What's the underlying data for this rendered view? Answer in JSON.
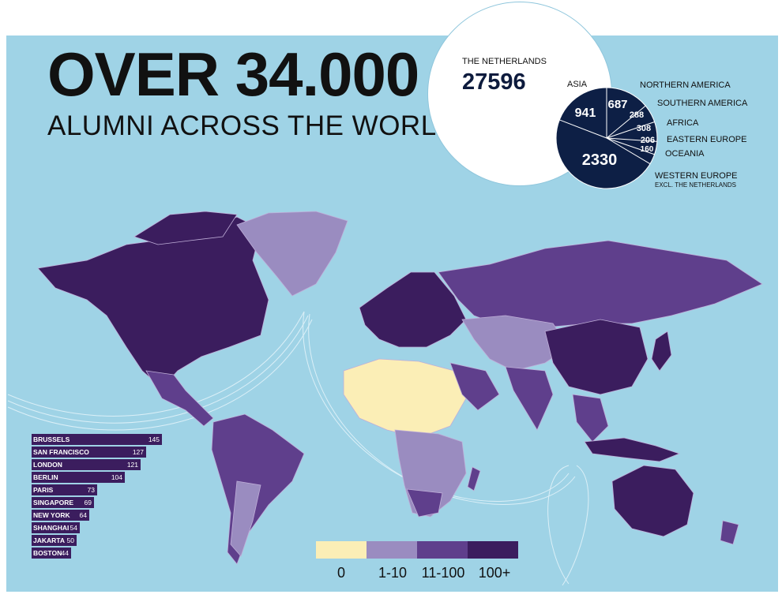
{
  "header": {
    "headline": "OVER 34.000",
    "subline": "ALUMNI ACROSS THE WORLD"
  },
  "netherlands": {
    "label": "THE NETHERLANDS",
    "value": "27596"
  },
  "regions": {
    "asia": {
      "label": "ASIA",
      "value": "941"
    },
    "northern_america": {
      "label": "NORTHERN AMERICA",
      "value": "687"
    },
    "southern_america": {
      "label": "SOUTHERN AMERICA",
      "value": "288"
    },
    "africa": {
      "label": "AFRICA",
      "value": "308"
    },
    "eastern_europe": {
      "label": "EASTERN EUROPE",
      "value": "206"
    },
    "oceania": {
      "label": "OCEANIA",
      "value": "160"
    },
    "western_europe": {
      "label": "WESTERN EUROPE",
      "sublabel": "EXCL. THE NETHERLANDS",
      "value": "2330"
    }
  },
  "cities": [
    {
      "name": "BRUSSELS",
      "value": 145
    },
    {
      "name": "SAN FRANCISCO",
      "value": 127
    },
    {
      "name": "LONDON",
      "value": 121
    },
    {
      "name": "BERLIN",
      "value": 104
    },
    {
      "name": "PARIS",
      "value": 73
    },
    {
      "name": "SINGAPORE",
      "value": 69
    },
    {
      "name": "NEW YORK",
      "value": 64
    },
    {
      "name": "SHANGHAI",
      "value": 54
    },
    {
      "name": "JAKARTA",
      "value": 50
    },
    {
      "name": "BOSTON",
      "value": 44
    }
  ],
  "legend": [
    {
      "label": "0",
      "color": "#fbeeb6"
    },
    {
      "label": "1-10",
      "color": "#9a8cc0"
    },
    {
      "label": "11-100",
      "color": "#5f3f8c"
    },
    {
      "label": "100+",
      "color": "#3b1d5e"
    }
  ],
  "colors": {
    "ocean": "#9fd3e6",
    "pie": "#0d1f45"
  }
}
